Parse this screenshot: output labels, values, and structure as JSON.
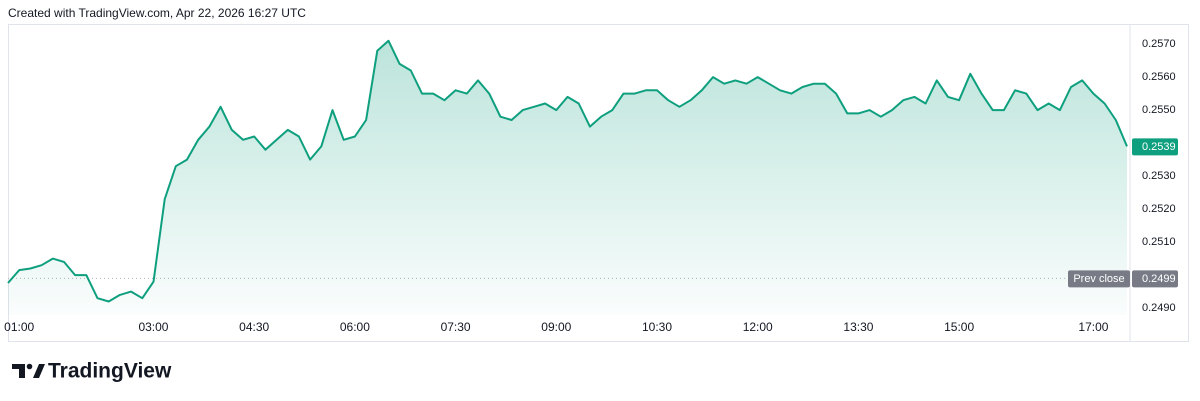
{
  "chart_data": {
    "type": "area",
    "title": "Created with TradingView.com, Apr 22, 2026 16:27 UTC",
    "color": "#0e9f7e",
    "categories": [
      "00:50",
      "01:00",
      "01:10",
      "01:20",
      "01:30",
      "01:40",
      "01:50",
      "02:00",
      "02:10",
      "02:20",
      "02:30",
      "02:40",
      "02:50",
      "03:00",
      "03:10",
      "03:20",
      "03:30",
      "03:40",
      "03:50",
      "04:00",
      "04:10",
      "04:20",
      "04:30",
      "04:40",
      "04:50",
      "05:00",
      "05:10",
      "05:20",
      "05:30",
      "05:40",
      "05:50",
      "06:00",
      "06:10",
      "06:20",
      "06:30",
      "06:40",
      "06:50",
      "07:00",
      "07:10",
      "07:20",
      "07:30",
      "07:40",
      "07:50",
      "08:00",
      "08:10",
      "08:20",
      "08:30",
      "08:40",
      "08:50",
      "09:00",
      "09:10",
      "09:20",
      "09:30",
      "09:40",
      "09:50",
      "10:00",
      "10:10",
      "10:20",
      "10:30",
      "10:40",
      "10:50",
      "11:00",
      "11:10",
      "11:20",
      "11:30",
      "11:40",
      "11:50",
      "12:00",
      "12:10",
      "12:20",
      "12:30",
      "12:40",
      "12:50",
      "13:00",
      "13:10",
      "13:20",
      "13:30",
      "13:40",
      "13:50",
      "14:00",
      "14:10",
      "14:20",
      "14:30",
      "14:40",
      "14:50",
      "15:00",
      "15:10",
      "15:20",
      "15:30",
      "15:40",
      "15:50",
      "16:00",
      "16:10",
      "16:20",
      "16:30",
      "16:40",
      "16:50",
      "17:00",
      "17:10",
      "17:20",
      "17:30"
    ],
    "values": [
      0.24976,
      0.25015,
      0.2502,
      0.2503,
      0.2505,
      0.2504,
      0.25,
      0.25,
      0.2493,
      0.2492,
      0.2494,
      0.2495,
      0.2493,
      0.2498,
      0.2523,
      0.2533,
      0.2535,
      0.2541,
      0.2545,
      0.2551,
      0.2544,
      0.2541,
      0.2542,
      0.2538,
      0.2541,
      0.2544,
      0.2542,
      0.2535,
      0.2539,
      0.255,
      0.2541,
      0.2542,
      0.2547,
      0.2568,
      0.2571,
      0.2564,
      0.2562,
      0.2555,
      0.2555,
      0.2553,
      0.2556,
      0.2555,
      0.2559,
      0.2555,
      0.2548,
      0.2547,
      0.255,
      0.2551,
      0.2552,
      0.255,
      0.2554,
      0.2552,
      0.2545,
      0.2548,
      0.255,
      0.2555,
      0.2555,
      0.2556,
      0.2556,
      0.2553,
      0.2551,
      0.2553,
      0.2556,
      0.256,
      0.2558,
      0.2559,
      0.2558,
      0.256,
      0.2558,
      0.2556,
      0.2555,
      0.2557,
      0.2558,
      0.2558,
      0.2555,
      0.2549,
      0.2549,
      0.255,
      0.2548,
      0.255,
      0.2553,
      0.2554,
      0.2552,
      0.2559,
      0.2554,
      0.2553,
      0.2561,
      0.2555,
      0.255,
      0.255,
      0.2556,
      0.2555,
      0.255,
      0.2552,
      0.255,
      0.2557,
      0.2559,
      0.2555,
      0.2552,
      0.2547,
      0.2539
    ],
    "xticks": [
      "01:00",
      "03:00",
      "04:30",
      "06:00",
      "07:30",
      "09:00",
      "10:30",
      "12:00",
      "13:30",
      "15:00",
      "17:00"
    ],
    "ylim": [
      0.24879,
      0.25779
    ],
    "yticks": [
      {
        "value": 0.257,
        "label": "0.2570"
      },
      {
        "value": 0.256,
        "label": "0.2560"
      },
      {
        "value": 0.255,
        "label": "0.2550"
      },
      {
        "value": 0.253,
        "label": "0.2530"
      },
      {
        "value": 0.252,
        "label": "0.2520"
      },
      {
        "value": 0.251,
        "label": "0.2510"
      },
      {
        "value": 0.249,
        "label": "0.2490"
      }
    ],
    "prev_close": {
      "label": "Prev close",
      "value": 0.2499
    }
  },
  "footer": {
    "brand": "TradingView"
  }
}
